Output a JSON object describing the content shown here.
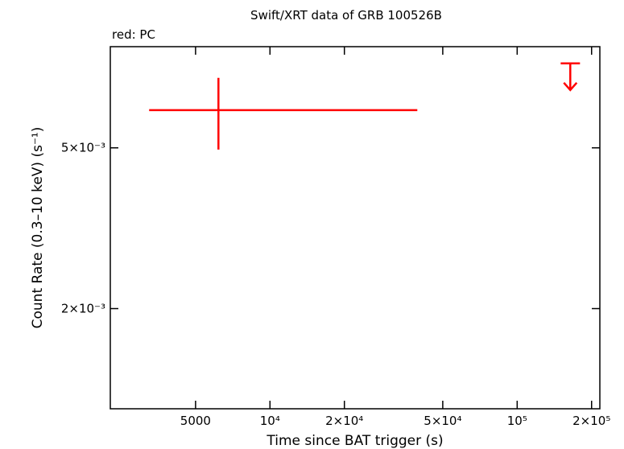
{
  "chart_data": {
    "type": "scatter",
    "title": "Swift/XRT data of GRB 100526B",
    "annotation": "red: PC",
    "x_label": "Time since BAT trigger (s)",
    "y_label": "Count Rate (0.3–10 keV) (s⁻¹)",
    "log_x": true,
    "log_y": true,
    "xlim": [
      2260,
      216000
    ],
    "ylim": [
      0.00113,
      0.0089
    ],
    "xticks": [
      5000,
      {
        "value": 10000,
        "label": "10⁴"
      },
      {
        "value": 20000,
        "label": "2×10⁴"
      },
      {
        "value": 50000,
        "label": "5×10⁴"
      },
      {
        "value": 100000,
        "label": "10⁵"
      },
      {
        "value": 200000,
        "label": "2×10⁵"
      }
    ],
    "yticks": [
      {
        "value": 0.002,
        "label": "2×10⁻³"
      },
      {
        "value": 0.005,
        "label": "5×10⁻³"
      }
    ],
    "color": "#ff0000",
    "points": {
      "x": [
        6188
      ],
      "xerr_minus": [
        2943
      ],
      "xerr_plus": [
        33262
      ],
      "values": [
        0.0062
      ],
      "yerr": [
        0.00125
      ]
    },
    "upper_limits": {
      "x": [
        164000
      ],
      "xerr_minus": [
        14000
      ],
      "xerr_plus": [
        15500
      ],
      "values": [
        0.00809
      ]
    }
  }
}
